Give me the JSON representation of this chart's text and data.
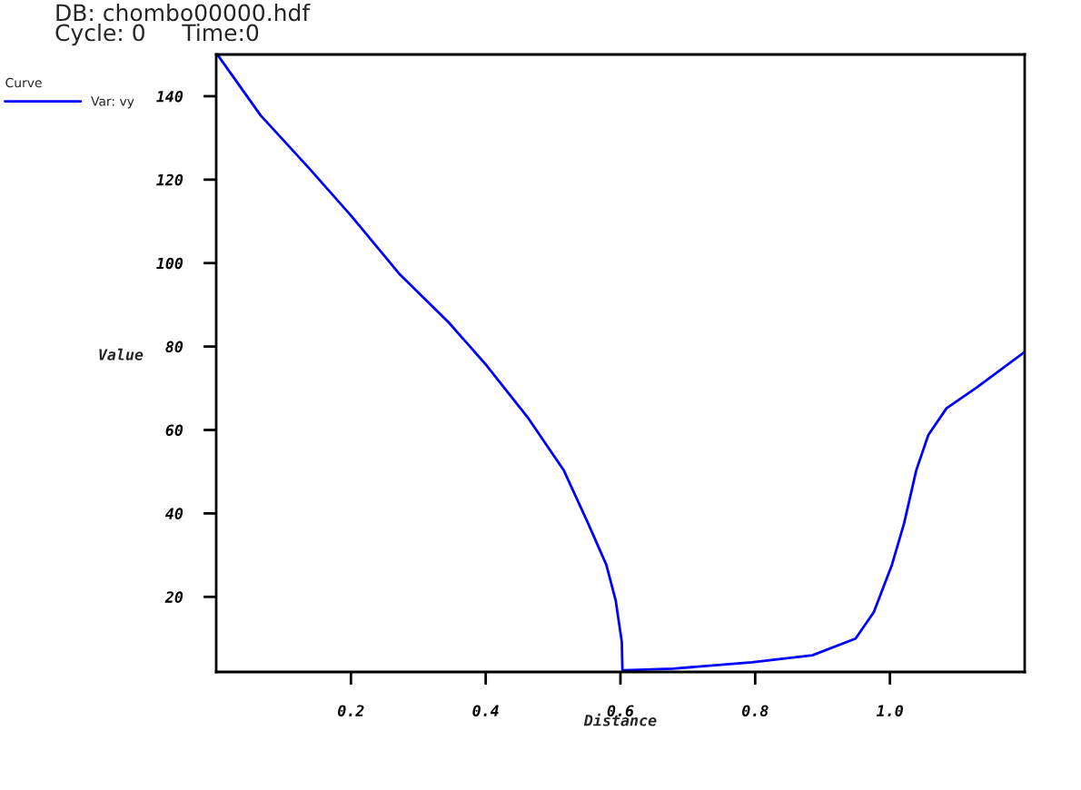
{
  "chart_data": {
    "type": "line",
    "title": "DB: chombo00000.hdf",
    "subtitle": "Cycle: 0     Time:0",
    "xlabel": "Distance",
    "ylabel": "Value",
    "legend_title": "Curve",
    "legend": "top left",
    "grid": false,
    "marker": "none",
    "line_style": "solid",
    "x": [
      0.003,
      0.066,
      0.138,
      0.2,
      0.273,
      0.345,
      0.399,
      0.462,
      0.516,
      0.552,
      0.579,
      0.593,
      0.602,
      0.603,
      0.606,
      0.678,
      0.795,
      0.885,
      0.949,
      0.976,
      1.003,
      1.021,
      1.039,
      1.057,
      1.084,
      1.129,
      1.2
    ],
    "series": [
      {
        "name": "Var: vy",
        "color": "#0000ff",
        "values": [
          149.7,
          135.4,
          122.7,
          111.4,
          97.2,
          85.8,
          75.9,
          63.1,
          50.3,
          37.6,
          27.7,
          19.1,
          9.2,
          2,
          2.4,
          2.8,
          4.3,
          6,
          10,
          16.3,
          27.7,
          37.6,
          50.3,
          58.8,
          65.2,
          70.2,
          78.7
        ]
      }
    ],
    "xlim": [
      0,
      1.2
    ],
    "ylim": [
      2,
      150
    ],
    "xticks": [
      0.2,
      0.4,
      0.6,
      0.8,
      {
        "value": 1.0,
        "label": "1.0"
      }
    ],
    "yticks": [
      20,
      40,
      60,
      80,
      100,
      120,
      140
    ]
  }
}
